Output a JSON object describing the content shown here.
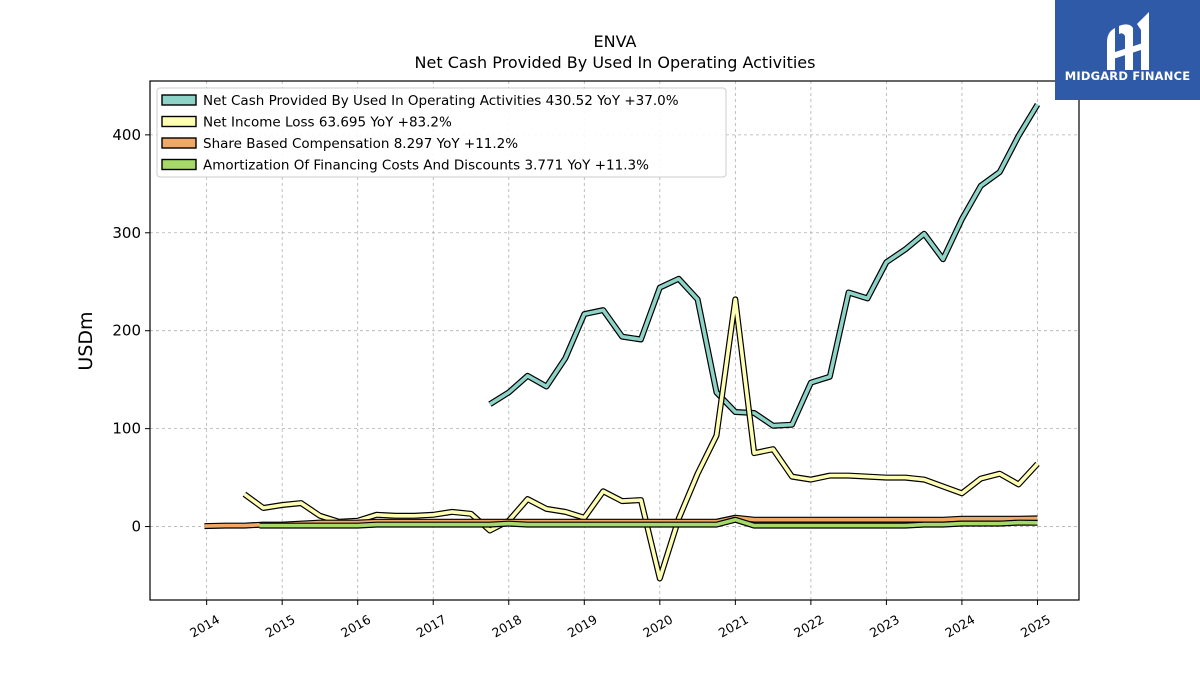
{
  "logo": {
    "text": "MIDGARD FINANCE",
    "icon": "midgard-logo-icon",
    "color": "#2f5aa8"
  },
  "chart_data": {
    "type": "line",
    "title": "ENVA",
    "subtitle": "Net Cash Provided By Used In Operating Activities",
    "ylabel": "USDm",
    "xlabel": "",
    "ylim": [
      -75,
      455
    ],
    "xlim": [
      2013.25,
      2025.55
    ],
    "yticks": [
      0,
      100,
      200,
      300,
      400
    ],
    "xticks": [
      "2014",
      "2015",
      "2016",
      "2017",
      "2018",
      "2019",
      "2020",
      "2021",
      "2022",
      "2023",
      "2024",
      "2025"
    ],
    "grid": true,
    "legend_position": "top-left",
    "series": [
      {
        "name": "Net Cash Provided By Used In Operating Activities",
        "legend": "Net Cash Provided By Used In Operating Activities  430.52 YoY +37.0%",
        "color": "#8dd3c7",
        "x": [
          2017.75,
          2018.0,
          2018.25,
          2018.5,
          2018.75,
          2019.0,
          2019.25,
          2019.5,
          2019.75,
          2020.0,
          2020.25,
          2020.5,
          2020.75,
          2021.0,
          2021.25,
          2021.5,
          2021.75,
          2022.0,
          2022.25,
          2022.5,
          2022.75,
          2023.0,
          2023.25,
          2023.5,
          2023.75,
          2024.0,
          2024.25,
          2024.5,
          2024.75,
          2025.0
        ],
        "y": [
          125,
          137,
          154,
          143,
          172,
          217,
          221,
          194,
          191,
          244,
          253,
          232,
          137,
          117,
          116,
          103,
          104,
          147,
          153,
          239,
          233,
          270,
          283,
          299,
          273,
          314,
          348,
          362,
          399,
          431
        ]
      },
      {
        "name": "Net Income Loss",
        "legend": "Net Income Loss  63.695 YoY +83.2%",
        "color": "#ffffb3",
        "x": [
          2014.5,
          2014.75,
          2015.0,
          2015.25,
          2015.5,
          2015.75,
          2016.0,
          2016.25,
          2016.5,
          2016.75,
          2017.0,
          2017.25,
          2017.5,
          2017.75,
          2018.0,
          2018.25,
          2018.5,
          2018.75,
          2019.0,
          2019.25,
          2019.5,
          2019.75,
          2020.0,
          2020.25,
          2020.5,
          2020.75,
          2021.0,
          2021.25,
          2021.5,
          2021.75,
          2022.0,
          2022.25,
          2022.5,
          2022.75,
          2023.0,
          2023.25,
          2023.5,
          2023.75,
          2024.0,
          2024.25,
          2024.5,
          2024.75,
          2025.0
        ],
        "y": [
          33,
          19,
          22,
          24,
          11,
          5,
          6,
          12,
          11,
          11,
          12,
          15,
          13,
          -4,
          6,
          28,
          18,
          15,
          9,
          36,
          26,
          27,
          -53,
          8,
          54,
          93,
          232,
          75,
          79,
          51,
          48,
          52,
          52,
          51,
          50,
          50,
          48,
          41,
          34,
          49,
          54,
          43,
          64
        ]
      },
      {
        "name": "Share Based Compensation",
        "legend": "Share Based Compensation  8.297 YoY +11.2%",
        "color": "#f0a866",
        "x": [
          2013.97,
          2014.25,
          2014.5,
          2014.75,
          2015.0,
          2015.25,
          2015.5,
          2015.75,
          2016.0,
          2016.25,
          2016.5,
          2016.75,
          2017.0,
          2017.25,
          2017.5,
          2017.75,
          2018.0,
          2018.25,
          2018.5,
          2018.75,
          2019.0,
          2019.25,
          2019.5,
          2019.75,
          2020.0,
          2020.25,
          2020.5,
          2020.75,
          2021.0,
          2021.25,
          2021.5,
          2021.75,
          2022.0,
          2022.25,
          2022.5,
          2022.75,
          2023.0,
          2023.25,
          2023.5,
          2023.75,
          2024.0,
          2024.25,
          2024.5,
          2024.75,
          2025.0
        ],
        "y": [
          0.5,
          1,
          1,
          2,
          2,
          3,
          4,
          4,
          4,
          5,
          5,
          5,
          5,
          5,
          5,
          5,
          5,
          5,
          5,
          5,
          5,
          5,
          5,
          5,
          5,
          5,
          5,
          5,
          9,
          7,
          7,
          7,
          7,
          7,
          7,
          7,
          7,
          7,
          7,
          7,
          8,
          8,
          8,
          8,
          8.3
        ]
      },
      {
        "name": "Amortization Of Financing Costs And Discounts",
        "legend": "Amortization Of Financing Costs And Discounts  3.771 YoY +11.3%",
        "color": "#a6d96a",
        "x": [
          2014.7,
          2015.0,
          2015.25,
          2015.5,
          2015.75,
          2016.0,
          2016.25,
          2016.5,
          2016.75,
          2017.0,
          2017.25,
          2017.5,
          2017.75,
          2018.0,
          2018.25,
          2018.5,
          2018.75,
          2019.0,
          2019.25,
          2019.5,
          2019.75,
          2020.0,
          2020.25,
          2020.5,
          2020.75,
          2021.0,
          2021.25,
          2021.5,
          2021.75,
          2022.0,
          2022.25,
          2022.5,
          2022.75,
          2023.0,
          2023.25,
          2023.5,
          2023.75,
          2024.0,
          2024.25,
          2024.5,
          2024.75,
          2025.0
        ],
        "y": [
          1,
          1,
          1,
          1,
          1,
          1,
          2,
          2,
          2,
          2,
          2,
          2,
          2,
          3,
          2,
          2,
          2,
          2,
          2,
          2,
          2,
          2,
          2,
          2,
          2,
          7,
          1,
          1,
          1,
          1,
          1,
          1,
          1,
          1,
          1,
          2,
          2,
          3,
          3,
          3,
          4,
          3.8
        ]
      }
    ]
  }
}
